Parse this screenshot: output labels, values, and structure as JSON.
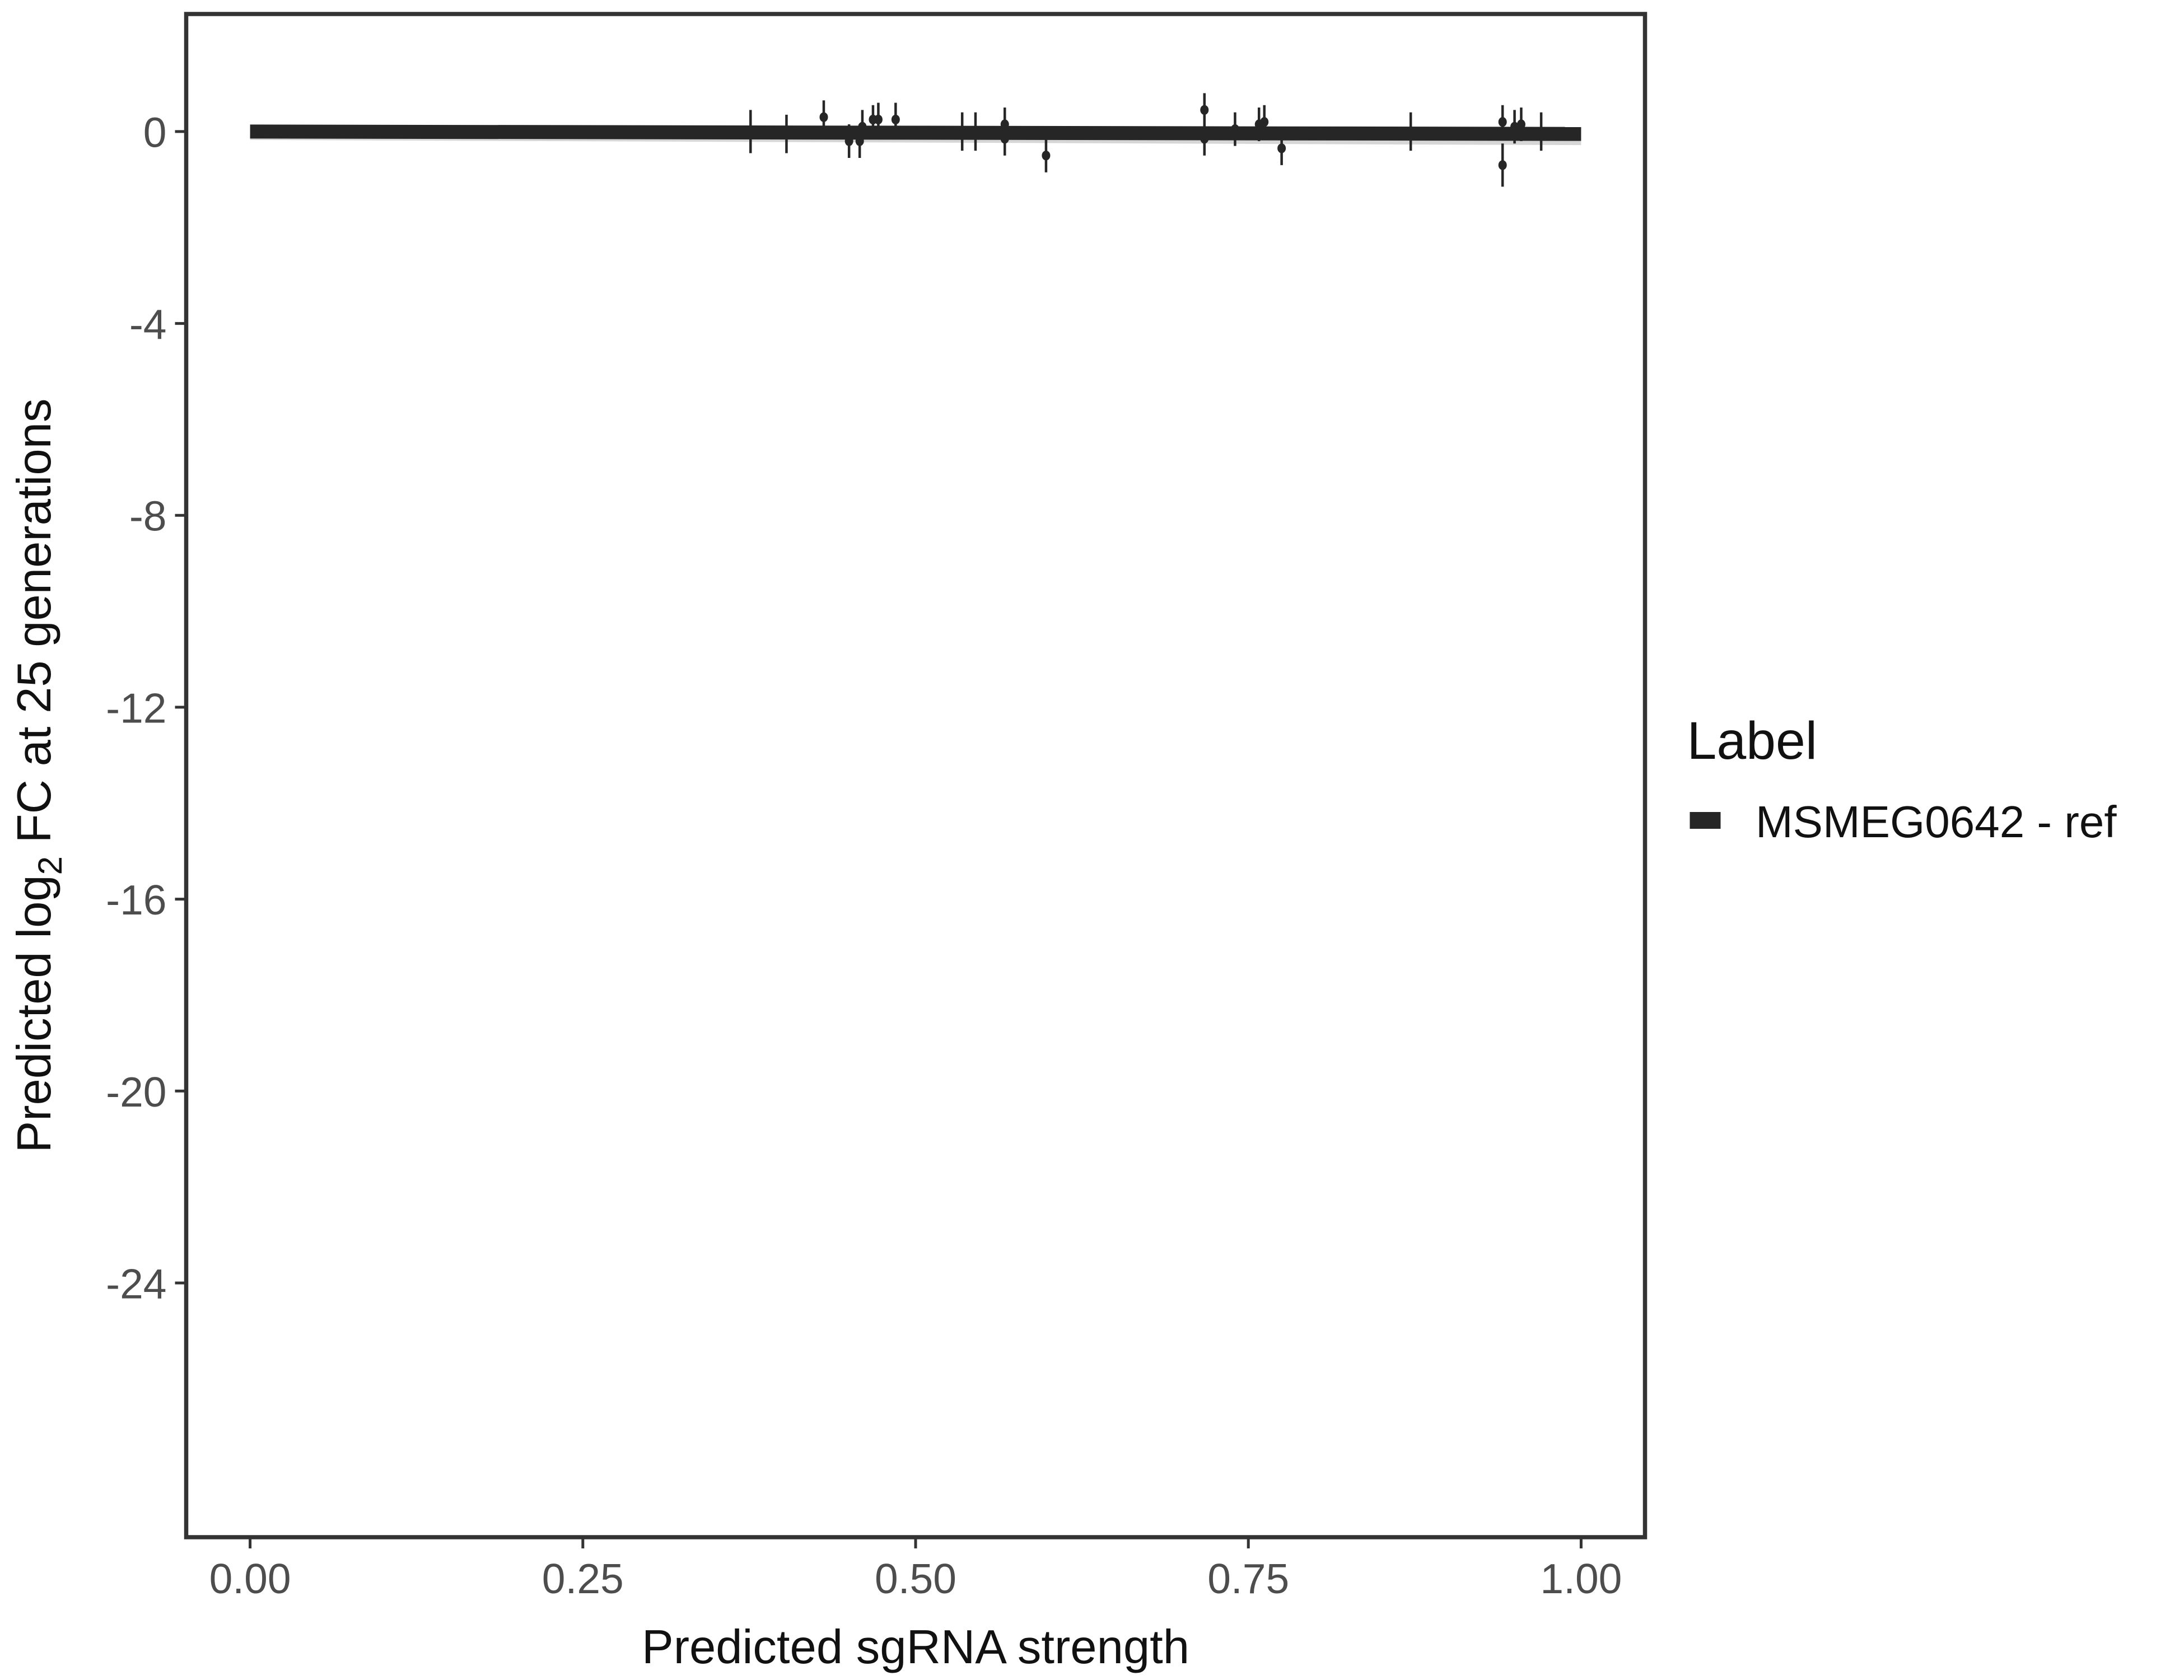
{
  "chart_data": {
    "type": "scatter",
    "title": "",
    "xlabel": "Predicted sgRNA strength",
    "ylabel_prefix": "Predicted  log",
    "ylabel_sub": "2",
    "ylabel_suffix": " FC at 25 generations",
    "xlim": [
      -0.048,
      1.048
    ],
    "ylim": [
      -29.3,
      2.45
    ],
    "xticks": [
      0,
      0.25,
      0.5,
      0.75,
      1
    ],
    "xtick_labels": [
      "0.00",
      "0.25",
      "0.50",
      "0.75",
      "1.00"
    ],
    "yticks": [
      0,
      -4,
      -8,
      -12,
      -16,
      -20,
      -24
    ],
    "ytick_labels": [
      "0",
      "-4",
      "-8",
      "-12",
      "-16",
      "-20",
      "-24"
    ],
    "grid": false,
    "legend": {
      "title": "Label",
      "position": "right",
      "entries": [
        "MSMEG0642 - ref"
      ]
    },
    "series": [
      {
        "name": "MSMEG0642 - ref",
        "color": "#262626",
        "fit_line": {
          "x": [
            0,
            1
          ],
          "y": [
            0,
            -0.05
          ]
        },
        "points": [
          {
            "x": 0.376,
            "y": 0.0,
            "err": 0.45
          },
          {
            "x": 0.403,
            "y": -0.05,
            "err": 0.4
          },
          {
            "x": 0.431,
            "y": 0.3,
            "err": 0.35
          },
          {
            "x": 0.45,
            "y": -0.2,
            "err": 0.35
          },
          {
            "x": 0.46,
            "y": 0.1,
            "err": 0.35
          },
          {
            "x": 0.458,
            "y": -0.2,
            "err": 0.35
          },
          {
            "x": 0.468,
            "y": 0.25,
            "err": 0.3
          },
          {
            "x": 0.472,
            "y": 0.25,
            "err": 0.35
          },
          {
            "x": 0.485,
            "y": 0.25,
            "err": 0.35
          },
          {
            "x": 0.535,
            "y": 0.0,
            "err": 0.4
          },
          {
            "x": 0.545,
            "y": 0.0,
            "err": 0.4
          },
          {
            "x": 0.567,
            "y": 0.15,
            "err": 0.35
          },
          {
            "x": 0.567,
            "y": -0.15,
            "err": 0.35
          },
          {
            "x": 0.598,
            "y": -0.5,
            "err": 0.35
          },
          {
            "x": 0.717,
            "y": 0.45,
            "err": 0.35
          },
          {
            "x": 0.717,
            "y": -0.15,
            "err": 0.35
          },
          {
            "x": 0.74,
            "y": 0.05,
            "err": 0.35
          },
          {
            "x": 0.758,
            "y": 0.15,
            "err": 0.35
          },
          {
            "x": 0.762,
            "y": 0.2,
            "err": 0.35
          },
          {
            "x": 0.775,
            "y": -0.35,
            "err": 0.35
          },
          {
            "x": 0.872,
            "y": 0.0,
            "err": 0.4
          },
          {
            "x": 0.941,
            "y": 0.2,
            "err": 0.35
          },
          {
            "x": 0.941,
            "y": -0.7,
            "err": 0.45
          },
          {
            "x": 0.95,
            "y": 0.1,
            "err": 0.35
          },
          {
            "x": 0.955,
            "y": 0.15,
            "err": 0.35
          },
          {
            "x": 0.97,
            "y": 0.0,
            "err": 0.4
          }
        ]
      }
    ]
  }
}
